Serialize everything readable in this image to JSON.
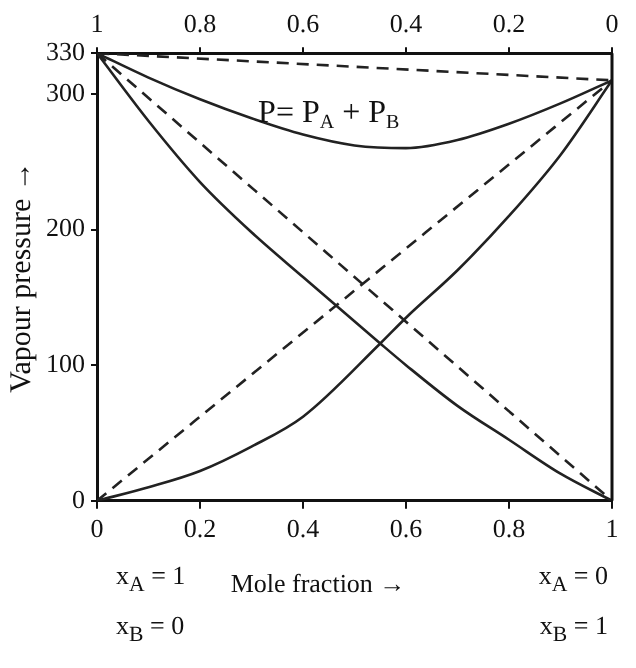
{
  "chart_data": {
    "type": "line",
    "xlabel": "Mole fraction →",
    "ylabel": "Vapour pressure →",
    "xlim": [
      0,
      1
    ],
    "xticks": [
      0,
      0.2,
      0.4,
      0.6,
      0.8,
      1
    ],
    "x2lim": [
      1,
      0
    ],
    "x2ticks": [
      1,
      0.8,
      0.6,
      0.4,
      0.2,
      0
    ],
    "ylim": [
      0,
      330
    ],
    "yticks": [
      0,
      100,
      200,
      300,
      330
    ],
    "grid": false,
    "legend": false,
    "marker": "none",
    "series": [
      {
        "color": "#222222",
        "line_style": "solid",
        "x": [
          0,
          0.1,
          0.2,
          0.3,
          0.4,
          0.5,
          0.6,
          0.7,
          0.8,
          0.9,
          1
        ],
        "values": [
          330,
          312,
          296,
          282,
          270,
          262,
          260,
          266,
          278,
          293,
          310
        ]
      },
      {
        "color": "#222222",
        "line_style": "solid",
        "x": [
          0,
          0.1,
          0.2,
          0.3,
          0.4,
          0.55,
          0.6,
          0.7,
          0.8,
          0.9,
          1
        ],
        "values": [
          330,
          280,
          235,
          198,
          165,
          116,
          100,
          70,
          45,
          20,
          0
        ]
      },
      {
        "color": "#222222",
        "line_style": "solid",
        "x": [
          0,
          0.1,
          0.2,
          0.3,
          0.4,
          0.55,
          0.6,
          0.7,
          0.8,
          0.9,
          1
        ],
        "values": [
          0,
          10,
          22,
          40,
          62,
          116,
          135,
          170,
          210,
          255,
          310
        ]
      },
      {
        "color": "#222222",
        "line_style": "dashed",
        "x": [
          0,
          1
        ],
        "values": [
          330,
          310
        ]
      },
      {
        "color": "#222222",
        "line_style": "dashed",
        "x": [
          0,
          1
        ],
        "values": [
          0,
          310
        ]
      },
      {
        "color": "#222222",
        "line_style": "dashed",
        "x": [
          0,
          1
        ],
        "values": [
          330,
          0
        ]
      }
    ],
    "annotations": [
      "P= P$_{A}$ + P$_{B}$",
      "x$_{A}$ = 1",
      "x$_{B}$ = 0",
      "x$_{A}$ = 0",
      "x$_{B}$ = 1"
    ]
  }
}
